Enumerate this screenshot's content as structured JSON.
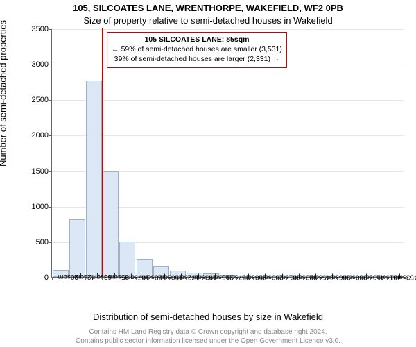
{
  "title": "105, SILCOATES LANE, WRENTHORPE, WAKEFIELD, WF2 0PB",
  "subtitle": "Size of property relative to semi-detached houses in Wakefield",
  "ylabel": "Number of semi-detached properties",
  "xlabel": "Distribution of semi-detached houses by size in Wakefield",
  "chart": {
    "type": "histogram",
    "background_color": "#ffffff",
    "grid_color": "#e6e6e6",
    "axis_color": "#666666",
    "bar_fill": "#dbe7f5",
    "bar_stroke": "#9ab2cc",
    "marker_color": "#cc0000",
    "ylim": [
      0,
      3500
    ],
    "ytick_step": 500,
    "yticks": [
      0,
      500,
      1000,
      1500,
      2000,
      2500,
      3000,
      3500
    ],
    "categories": [
      "20sqm",
      "42sqm",
      "63sqm",
      "85sqm",
      "107sqm",
      "128sqm",
      "150sqm",
      "172sqm",
      "193sqm",
      "215sqm",
      "237sqm",
      "258sqm",
      "280sqm",
      "301sqm",
      "323sqm",
      "345sqm",
      "366sqm",
      "388sqm",
      "410sqm",
      "431sqm",
      "453sqm"
    ],
    "values": [
      98,
      810,
      2770,
      1490,
      500,
      250,
      145,
      90,
      60,
      45,
      25,
      15,
      10,
      6,
      4,
      3,
      2,
      2,
      1,
      1,
      0
    ],
    "marker_category_index": 3,
    "annotation": {
      "line1": "105 SILCOATES LANE: 85sqm",
      "line2_left_arrow": "←",
      "line2": "59% of semi-detached houses are smaller (3,531)",
      "line3": "39% of semi-detached houses are larger (2,331)",
      "line3_right_arrow": "→",
      "border_color": "#cc0000",
      "text_color": "#000000"
    },
    "title_fontsize": 13,
    "label_fontsize": 13,
    "tick_fontsize": 11,
    "xtick_fontsize": 10
  },
  "footer": {
    "line1": "Contains HM Land Registry data © Crown copyright and database right 2024.",
    "line2": "Contains public sector information licensed under the Open Government Licence v3.0.",
    "color": "#888888"
  }
}
